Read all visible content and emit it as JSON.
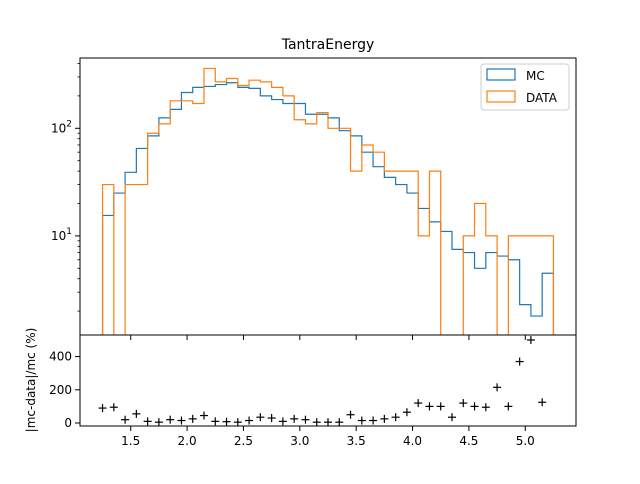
{
  "chart_data": [
    {
      "type": "step",
      "title": "TantraEnergy",
      "xlabel": "",
      "ylabel": "",
      "yscale": "log",
      "xlim": [
        1.05,
        5.45
      ],
      "ylim": [
        1.2,
        450
      ],
      "grid": false,
      "legend_position": "top-right",
      "x_ticks": [
        1.5,
        2.0,
        2.5,
        3.0,
        3.5,
        4.0,
        4.5,
        5.0
      ],
      "y_ticks": [
        10,
        100
      ],
      "y_tick_labels": [
        "10^1",
        "10^2"
      ],
      "bin_edges": [
        1.25,
        1.35,
        1.45,
        1.55,
        1.65,
        1.75,
        1.85,
        1.95,
        2.05,
        2.15,
        2.25,
        2.35,
        2.45,
        2.55,
        2.65,
        2.75,
        2.85,
        2.95,
        3.05,
        3.15,
        3.25,
        3.35,
        3.45,
        3.55,
        3.65,
        3.75,
        3.85,
        3.95,
        4.05,
        4.15,
        4.25,
        4.35,
        4.45,
        4.55,
        4.65,
        4.75,
        4.85,
        4.95,
        5.05,
        5.15,
        5.25
      ],
      "series": [
        {
          "name": "MC",
          "color": "#1f77b4",
          "values": [
            15.5,
            25,
            39,
            65,
            85,
            125,
            150,
            215,
            240,
            245,
            255,
            265,
            240,
            235,
            200,
            185,
            170,
            170,
            135,
            135,
            125,
            95,
            85,
            60,
            44,
            35,
            30,
            25,
            18,
            13.5,
            11,
            7.5,
            7,
            5,
            7,
            6.5,
            6,
            2.3,
            1.8,
            4.5
          ]
        },
        {
          "name": "DATA",
          "color": "#ff7f0e",
          "values": [
            30,
            0,
            30,
            30,
            90,
            110,
            180,
            180,
            170,
            360,
            270,
            290,
            250,
            280,
            270,
            240,
            200,
            120,
            110,
            140,
            100,
            100,
            40,
            70,
            60,
            40,
            40,
            40,
            10,
            40,
            0,
            0,
            10,
            20,
            10,
            0,
            10,
            10,
            10,
            10
          ]
        }
      ]
    },
    {
      "type": "scatter",
      "title": "",
      "xlabel": "",
      "ylabel": "|mc-data|/mc (%)",
      "xlim": [
        1.05,
        5.45
      ],
      "ylim": [
        -18,
        530
      ],
      "grid": false,
      "marker": "+",
      "color": "#000000",
      "x_ticks": [
        1.5,
        2.0,
        2.5,
        3.0,
        3.5,
        4.0,
        4.5,
        5.0
      ],
      "x_tick_labels": [
        "1.5",
        "2.0",
        "2.5",
        "3.0",
        "3.5",
        "4.0",
        "4.5",
        "5.0"
      ],
      "y_ticks": [
        0,
        200,
        400
      ],
      "y_tick_labels": [
        "0",
        "200",
        "400"
      ],
      "x": [
        1.25,
        1.35,
        1.45,
        1.55,
        1.65,
        1.75,
        1.85,
        1.95,
        2.05,
        2.15,
        2.25,
        2.35,
        2.45,
        2.55,
        2.65,
        2.75,
        2.85,
        2.95,
        3.05,
        3.15,
        3.25,
        3.35,
        3.45,
        3.55,
        3.65,
        3.75,
        3.85,
        3.95,
        4.05,
        4.15,
        4.25,
        4.35,
        4.45,
        4.55,
        4.65,
        4.75,
        4.85,
        4.95,
        5.05,
        5.15
      ],
      "y": [
        90,
        95,
        20,
        55,
        10,
        5,
        20,
        15,
        25,
        45,
        10,
        8,
        5,
        15,
        35,
        30,
        10,
        25,
        20,
        5,
        5,
        5,
        50,
        15,
        15,
        25,
        35,
        65,
        120,
        100,
        100,
        35,
        120,
        100,
        95,
        215,
        100,
        370,
        500,
        125
      ]
    }
  ]
}
